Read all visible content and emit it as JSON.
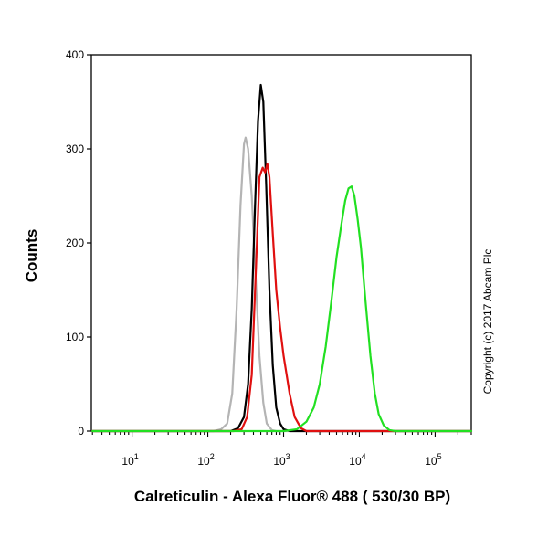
{
  "chart_data": {
    "type": "line",
    "title": "",
    "xlabel": "Calreticulin - Alexa Fluor® 488 ( 530/30 BP)",
    "ylabel": "Counts",
    "x_scale": "log",
    "xlim": [
      2.9,
      300000
    ],
    "ylim": [
      0,
      400
    ],
    "x_ticks": [
      {
        "value": 10,
        "base": "10",
        "exp": "1"
      },
      {
        "value": 100,
        "base": "10",
        "exp": "2"
      },
      {
        "value": 1000,
        "base": "10",
        "exp": "3"
      },
      {
        "value": 10000,
        "base": "10",
        "exp": "4"
      },
      {
        "value": 100000,
        "base": "10",
        "exp": "5"
      }
    ],
    "y_ticks": [
      {
        "value": 0,
        "label": "0"
      },
      {
        "value": 100,
        "label": "100"
      },
      {
        "value": 200,
        "label": "200"
      },
      {
        "value": 300,
        "label": "300"
      },
      {
        "value": 400,
        "label": "400"
      }
    ],
    "grid": false,
    "legend": "none",
    "series": [
      {
        "color": "#b4b4b4",
        "points": [
          [
            3,
            0
          ],
          [
            120,
            0
          ],
          [
            150,
            2
          ],
          [
            180,
            8
          ],
          [
            210,
            40
          ],
          [
            240,
            130
          ],
          [
            270,
            240
          ],
          [
            300,
            305
          ],
          [
            315,
            312
          ],
          [
            340,
            300
          ],
          [
            380,
            250
          ],
          [
            430,
            160
          ],
          [
            480,
            80
          ],
          [
            540,
            30
          ],
          [
            600,
            8
          ],
          [
            700,
            1
          ],
          [
            800,
            0
          ],
          [
            300000,
            0
          ]
        ]
      },
      {
        "color": "#000000",
        "points": [
          [
            3,
            0
          ],
          [
            200,
            0
          ],
          [
            250,
            3
          ],
          [
            300,
            15
          ],
          [
            340,
            50
          ],
          [
            380,
            130
          ],
          [
            420,
            240
          ],
          [
            460,
            330
          ],
          [
            500,
            368
          ],
          [
            540,
            350
          ],
          [
            590,
            260
          ],
          [
            650,
            150
          ],
          [
            720,
            70
          ],
          [
            800,
            25
          ],
          [
            900,
            8
          ],
          [
            1000,
            2
          ],
          [
            1200,
            0
          ],
          [
            300000,
            0
          ]
        ]
      },
      {
        "color": "#e01010",
        "points": [
          [
            3,
            0
          ],
          [
            220,
            0
          ],
          [
            280,
            2
          ],
          [
            330,
            15
          ],
          [
            380,
            60
          ],
          [
            430,
            170
          ],
          [
            480,
            270
          ],
          [
            530,
            280
          ],
          [
            570,
            275
          ],
          [
            610,
            284
          ],
          [
            650,
            270
          ],
          [
            720,
            210
          ],
          [
            800,
            150
          ],
          [
            900,
            110
          ],
          [
            1000,
            80
          ],
          [
            1200,
            40
          ],
          [
            1400,
            15
          ],
          [
            1700,
            3
          ],
          [
            2000,
            0
          ],
          [
            300000,
            0
          ]
        ]
      },
      {
        "color": "#22e022",
        "points": [
          [
            3,
            0
          ],
          [
            1000,
            0
          ],
          [
            1500,
            2
          ],
          [
            2000,
            10
          ],
          [
            2500,
            25
          ],
          [
            3000,
            50
          ],
          [
            3600,
            90
          ],
          [
            4300,
            140
          ],
          [
            5000,
            185
          ],
          [
            5800,
            220
          ],
          [
            6500,
            245
          ],
          [
            7200,
            258
          ],
          [
            7900,
            260
          ],
          [
            8600,
            250
          ],
          [
            9500,
            225
          ],
          [
            10500,
            195
          ],
          [
            12000,
            140
          ],
          [
            14000,
            80
          ],
          [
            16000,
            40
          ],
          [
            18000,
            18
          ],
          [
            21000,
            6
          ],
          [
            25000,
            1
          ],
          [
            30000,
            0
          ],
          [
            300000,
            0
          ]
        ]
      }
    ]
  },
  "copyright": "Copyright (c) 2017 Abcam Plc"
}
